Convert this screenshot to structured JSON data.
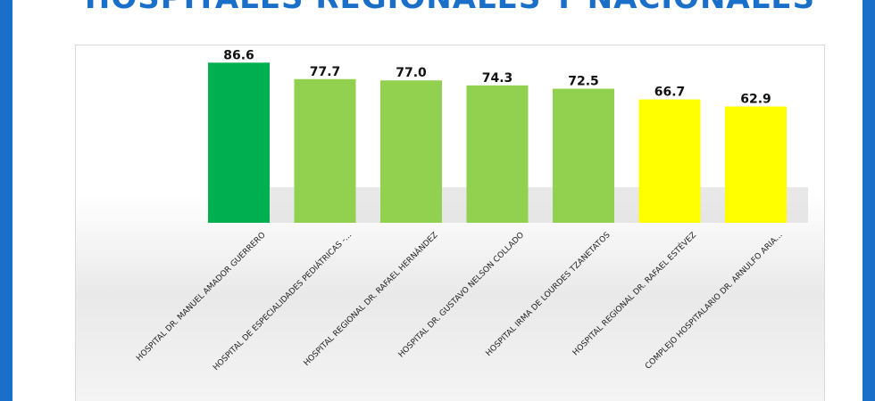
{
  "chart_data": {
    "type": "bar",
    "title": "HOSPITALES REGIONALES Y NACIONALES",
    "categories": [
      "HOSPITAL DR. MANUEL AMADOR GUERRERO",
      "HOSPITAL DE ESPECIALIDADES PEDIÁTRICAS -...",
      "HOSPITAL REGIONAL DR. RAFAEL HERNÁNDEZ",
      "HOSPITAL DR. GUSTAVO NELSON COLLADO",
      "HOSPITAL IRMA DE LOURDES TZANETATOS",
      "HOSPITAL REGIONAL DR. RAFAEL ESTÉVEZ",
      "COMPLEJO HOSPITALARIO DR. ARNULFO ARIA..."
    ],
    "values": [
      86.6,
      77.7,
      77.0,
      74.3,
      72.5,
      66.7,
      62.9
    ],
    "data_labels": [
      "86.6",
      "77.7",
      "77.0",
      "74.3",
      "72.5",
      "66.7",
      "62.9"
    ],
    "bar_colors": [
      "#00b050",
      "#92d050",
      "#92d050",
      "#92d050",
      "#92d050",
      "#ffff00",
      "#ffff00"
    ],
    "xlabel": "",
    "ylabel": "",
    "grid": false,
    "legend": "none"
  }
}
